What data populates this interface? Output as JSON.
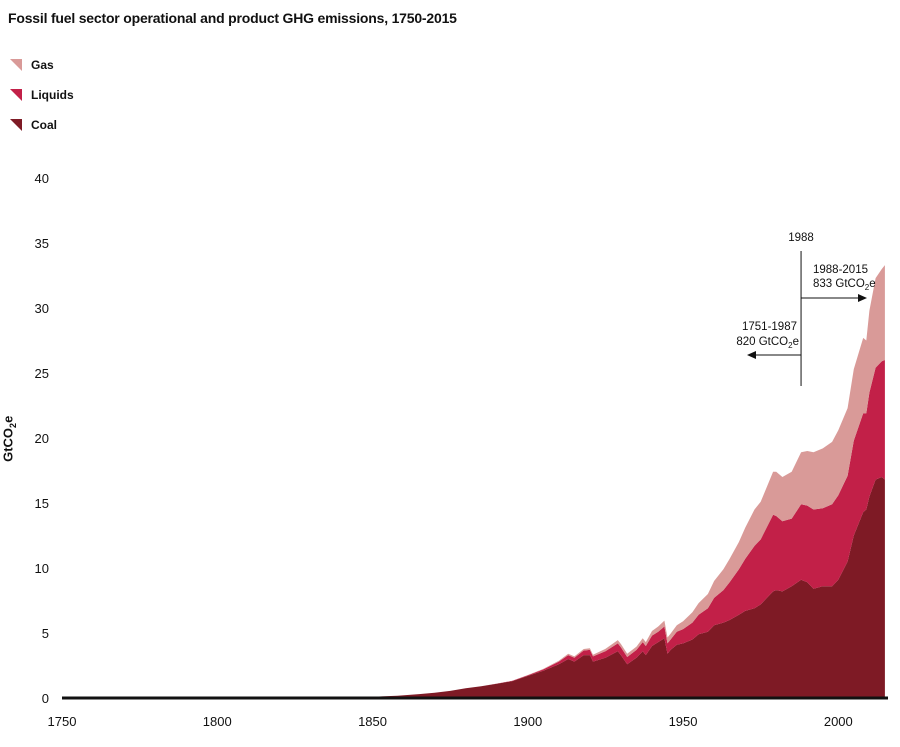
{
  "chart_data": {
    "type": "area",
    "stacked": true,
    "title": "Fossil fuel sector operational and product GHG emissions, 1750-2015",
    "xlabel": "",
    "ylabel": "GtCO",
    "ylabel_sub": "2",
    "ylabel_suffix": "e",
    "xlim": [
      1750,
      2016
    ],
    "ylim": [
      0,
      40
    ],
    "xticks": [
      1750,
      1800,
      1850,
      1900,
      1950,
      2000
    ],
    "yticks": [
      0,
      5,
      10,
      15,
      20,
      25,
      30,
      35,
      40
    ],
    "legend": [
      {
        "name": "Gas",
        "color": "#d99a98"
      },
      {
        "name": "Liquids",
        "color": "#c22048"
      },
      {
        "name": "Coal",
        "color": "#7e1a25"
      }
    ],
    "x": [
      1750,
      1850,
      1858,
      1865,
      1870,
      1875,
      1880,
      1885,
      1890,
      1895,
      1900,
      1905,
      1910,
      1913,
      1915,
      1918,
      1920,
      1921,
      1925,
      1929,
      1930,
      1932,
      1935,
      1937,
      1938,
      1940,
      1942,
      1944,
      1945,
      1946,
      1948,
      1950,
      1953,
      1955,
      1958,
      1960,
      1963,
      1965,
      1968,
      1970,
      1973,
      1975,
      1979,
      1980,
      1982,
      1985,
      1988,
      1990,
      1992,
      1995,
      1998,
      2000,
      2003,
      2005,
      2008,
      2009,
      2010,
      2012,
      2014,
      2015
    ],
    "series": [
      {
        "name": "Coal",
        "values": [
          0.05,
          0.1,
          0.18,
          0.3,
          0.4,
          0.55,
          0.75,
          0.9,
          1.1,
          1.3,
          1.7,
          2.1,
          2.6,
          3.0,
          2.8,
          3.3,
          3.3,
          2.8,
          3.1,
          3.6,
          3.3,
          2.6,
          3.1,
          3.6,
          3.3,
          4.0,
          4.3,
          4.6,
          3.4,
          3.7,
          4.1,
          4.2,
          4.5,
          4.9,
          5.1,
          5.6,
          5.8,
          6.0,
          6.4,
          6.7,
          6.9,
          7.2,
          8.2,
          8.3,
          8.2,
          8.6,
          9.1,
          8.9,
          8.4,
          8.6,
          8.6,
          9.1,
          10.5,
          12.5,
          14.3,
          14.5,
          15.5,
          16.8,
          17.0,
          16.8
        ]
      },
      {
        "name": "Liquids",
        "values": [
          0,
          0,
          0,
          0,
          0,
          0,
          0,
          0,
          0.01,
          0.02,
          0.05,
          0.1,
          0.2,
          0.3,
          0.3,
          0.35,
          0.4,
          0.4,
          0.5,
          0.6,
          0.6,
          0.55,
          0.6,
          0.7,
          0.7,
          0.8,
          0.8,
          0.9,
          0.8,
          0.8,
          1.0,
          1.1,
          1.3,
          1.5,
          1.8,
          2.1,
          2.5,
          2.9,
          3.5,
          4.0,
          4.8,
          5.0,
          5.9,
          5.7,
          5.4,
          5.2,
          5.8,
          5.9,
          6.1,
          6.0,
          6.3,
          6.5,
          6.6,
          7.3,
          7.6,
          7.4,
          8.0,
          8.6,
          8.9,
          9.2
        ]
      },
      {
        "name": "Gas",
        "values": [
          0,
          0,
          0,
          0,
          0,
          0,
          0,
          0,
          0,
          0,
          0.02,
          0.04,
          0.07,
          0.1,
          0.1,
          0.12,
          0.13,
          0.13,
          0.18,
          0.25,
          0.25,
          0.25,
          0.25,
          0.3,
          0.3,
          0.35,
          0.4,
          0.45,
          0.45,
          0.45,
          0.5,
          0.6,
          0.8,
          0.9,
          1.1,
          1.3,
          1.6,
          1.8,
          2.1,
          2.4,
          2.8,
          2.9,
          3.3,
          3.4,
          3.4,
          3.6,
          4.0,
          4.2,
          4.4,
          4.6,
          4.8,
          5.0,
          5.2,
          5.5,
          5.8,
          5.6,
          6.3,
          6.9,
          7.1,
          7.3
        ]
      }
    ],
    "annotations": {
      "divider_label": "1988",
      "right_label_1": "1988-2015",
      "right_label_2a": "833 GtCO",
      "right_label_2b": "2",
      "right_label_2c": "e",
      "left_label_1": "1751-1987",
      "left_label_2a": "820 GtCO",
      "left_label_2b": "2",
      "left_label_2c": "e"
    }
  }
}
